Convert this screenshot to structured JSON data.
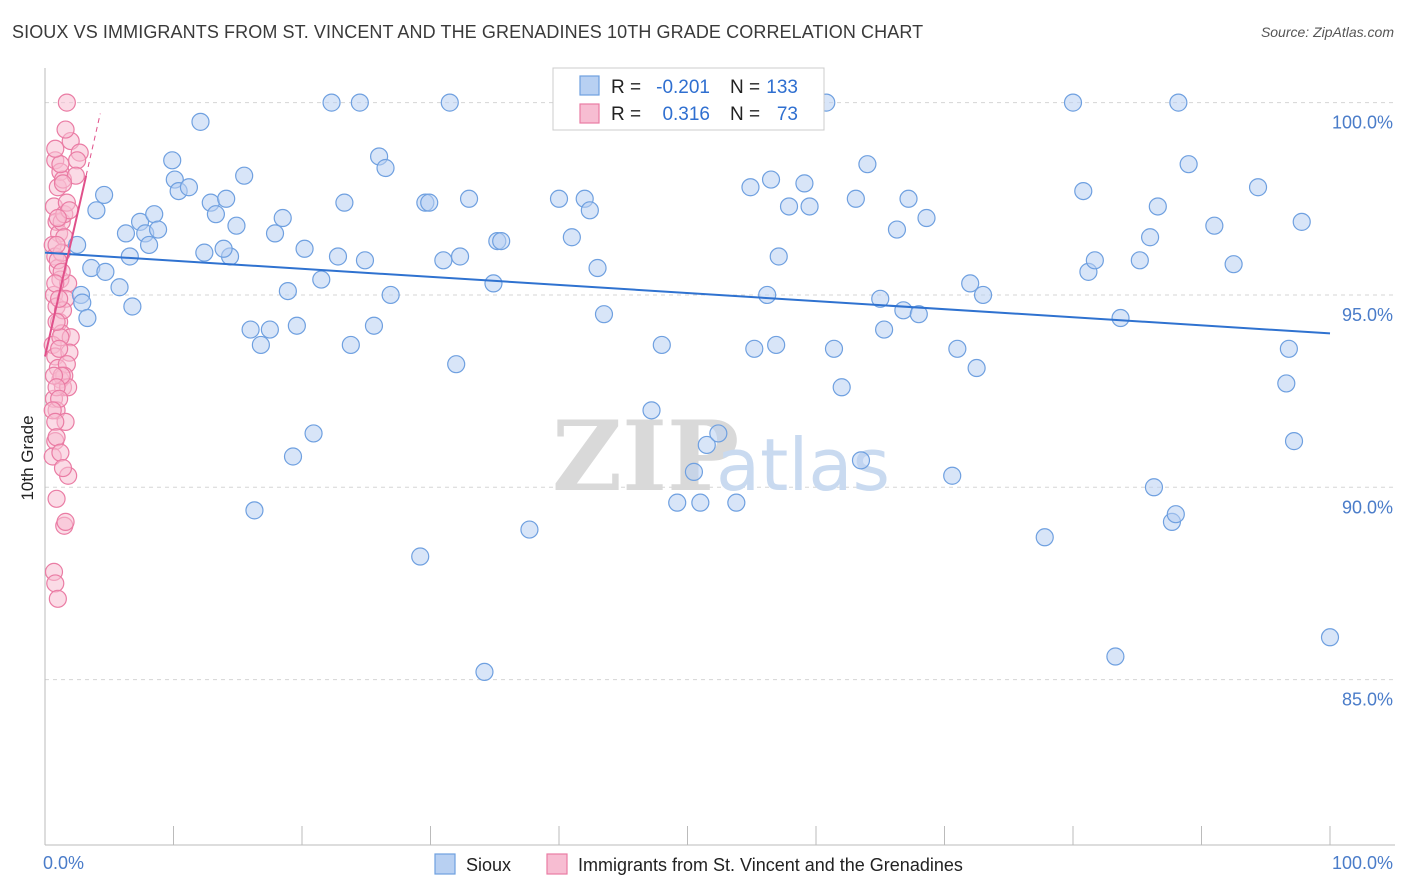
{
  "title": "SIOUX VS IMMIGRANTS FROM ST. VINCENT AND THE GRENADINES 10TH GRADE CORRELATION CHART",
  "source": "Source: ZipAtlas.com",
  "watermark": {
    "zip": "ZIP",
    "atlas": "atlas"
  },
  "colors": {
    "blue": "#6fa0e0",
    "blue_fill": "#b8d0f2",
    "pink": "#ea7ca4",
    "pink_fill": "#f7bdd2",
    "blue_line": "#2f72d0",
    "pink_line": "#e0508a",
    "grid": "#d5d5d5",
    "tick_text": "#4a7cc9"
  },
  "legend": {
    "r_label": "R =",
    "n_label": "N =",
    "rows": [
      {
        "r": "-0.201",
        "n": "133"
      },
      {
        "r": "0.316",
        "n": "73"
      }
    ]
  },
  "chart_data": {
    "type": "scatter",
    "title": "SIOUX VS IMMIGRANTS FROM ST. VINCENT AND THE GRENADINES 10TH GRADE CORRELATION CHART",
    "xlabel": "",
    "ylabel": "10th Grade",
    "xlim": [
      0,
      100
    ],
    "ylim": [
      80.7,
      100.9
    ],
    "x_tick_labels": [
      "0.0%",
      "100.0%"
    ],
    "y_ticks": [
      85,
      90,
      95,
      100
    ],
    "y_tick_labels": [
      "85.0%",
      "90.0%",
      "95.0%",
      "100.0%"
    ],
    "grid": true,
    "legend_position": "top-center",
    "series": [
      {
        "name": "Sioux",
        "color": "#6fa0e0",
        "trend": {
          "x0": 0,
          "y0": 96.1,
          "x1": 100,
          "y1": 94.0
        },
        "points": [
          [
            2.5,
            96.3
          ],
          [
            2.8,
            95.0
          ],
          [
            2.9,
            94.8
          ],
          [
            3.3,
            94.4
          ],
          [
            4.0,
            97.2
          ],
          [
            3.6,
            95.7
          ],
          [
            4.7,
            95.6
          ],
          [
            4.6,
            97.6
          ],
          [
            5.8,
            95.2
          ],
          [
            6.3,
            96.6
          ],
          [
            6.6,
            96.0
          ],
          [
            6.8,
            94.7
          ],
          [
            7.4,
            96.9
          ],
          [
            7.8,
            96.6
          ],
          [
            8.1,
            96.3
          ],
          [
            8.5,
            97.1
          ],
          [
            8.8,
            96.7
          ],
          [
            9.9,
            98.5
          ],
          [
            10.1,
            98.0
          ],
          [
            10.4,
            97.7
          ],
          [
            11.2,
            97.8
          ],
          [
            12.1,
            99.5
          ],
          [
            12.4,
            96.1
          ],
          [
            12.9,
            97.4
          ],
          [
            13.3,
            97.1
          ],
          [
            14.1,
            97.5
          ],
          [
            14.4,
            96.0
          ],
          [
            14.9,
            96.8
          ],
          [
            15.5,
            98.1
          ],
          [
            16.0,
            94.1
          ],
          [
            16.3,
            89.4
          ],
          [
            16.8,
            93.7
          ],
          [
            17.5,
            94.1
          ],
          [
            17.9,
            96.6
          ],
          [
            18.5,
            97.0
          ],
          [
            18.9,
            95.1
          ],
          [
            19.3,
            90.8
          ],
          [
            19.6,
            94.2
          ],
          [
            20.2,
            96.2
          ],
          [
            20.9,
            91.4
          ],
          [
            21.5,
            95.4
          ],
          [
            22.3,
            100.0
          ],
          [
            22.8,
            96.0
          ],
          [
            23.3,
            97.4
          ],
          [
            23.8,
            93.7
          ],
          [
            24.5,
            100.0
          ],
          [
            24.9,
            95.9
          ],
          [
            25.6,
            94.2
          ],
          [
            26.0,
            98.6
          ],
          [
            26.5,
            98.3
          ],
          [
            26.9,
            95.0
          ],
          [
            29.2,
            88.2
          ],
          [
            29.6,
            97.4
          ],
          [
            29.9,
            97.4
          ],
          [
            31.0,
            95.9
          ],
          [
            31.5,
            100.0
          ],
          [
            32.0,
            93.2
          ],
          [
            32.3,
            96.0
          ],
          [
            33.0,
            97.5
          ],
          [
            34.2,
            85.2
          ],
          [
            34.9,
            95.3
          ],
          [
            35.2,
            96.4
          ],
          [
            35.5,
            96.4
          ],
          [
            37.7,
            88.9
          ],
          [
            40.0,
            97.5
          ],
          [
            41.0,
            96.5
          ],
          [
            42.0,
            97.5
          ],
          [
            42.4,
            97.2
          ],
          [
            43.0,
            95.7
          ],
          [
            43.5,
            94.5
          ],
          [
            45.5,
            100.0
          ],
          [
            47.0,
            100.0
          ],
          [
            47.2,
            92.0
          ],
          [
            48.0,
            93.7
          ],
          [
            49.2,
            89.6
          ],
          [
            50.0,
            100.0
          ],
          [
            50.5,
            90.4
          ],
          [
            51.0,
            89.6
          ],
          [
            51.5,
            91.1
          ],
          [
            52.4,
            91.4
          ],
          [
            53.2,
            100.0
          ],
          [
            53.8,
            89.6
          ],
          [
            54.9,
            97.8
          ],
          [
            55.2,
            93.6
          ],
          [
            56.2,
            95.0
          ],
          [
            56.5,
            98.0
          ],
          [
            56.9,
            93.7
          ],
          [
            57.1,
            96.0
          ],
          [
            57.9,
            97.3
          ],
          [
            59.1,
            97.9
          ],
          [
            59.5,
            97.3
          ],
          [
            60.8,
            100.0
          ],
          [
            61.4,
            93.6
          ],
          [
            62.0,
            92.6
          ],
          [
            63.1,
            97.5
          ],
          [
            63.5,
            90.7
          ],
          [
            64.0,
            98.4
          ],
          [
            65.0,
            94.9
          ],
          [
            65.3,
            94.1
          ],
          [
            66.3,
            96.7
          ],
          [
            66.8,
            94.6
          ],
          [
            67.2,
            97.5
          ],
          [
            68.0,
            94.5
          ],
          [
            68.6,
            97.0
          ],
          [
            70.6,
            90.3
          ],
          [
            71.0,
            93.6
          ],
          [
            72.0,
            95.3
          ],
          [
            72.5,
            93.1
          ],
          [
            73.0,
            95.0
          ],
          [
            77.8,
            88.7
          ],
          [
            80.0,
            100.0
          ],
          [
            80.8,
            97.7
          ],
          [
            81.2,
            95.6
          ],
          [
            81.7,
            95.9
          ],
          [
            83.3,
            85.6
          ],
          [
            83.7,
            94.4
          ],
          [
            85.2,
            95.9
          ],
          [
            86.0,
            96.5
          ],
          [
            86.3,
            90.0
          ],
          [
            86.6,
            97.3
          ],
          [
            87.7,
            89.1
          ],
          [
            88.0,
            89.3
          ],
          [
            88.2,
            100.0
          ],
          [
            89.0,
            98.4
          ],
          [
            91.0,
            96.8
          ],
          [
            92.5,
            95.8
          ],
          [
            94.4,
            97.8
          ],
          [
            96.6,
            92.7
          ],
          [
            96.8,
            93.6
          ],
          [
            97.2,
            91.2
          ],
          [
            97.8,
            96.9
          ],
          [
            100.0,
            86.1
          ],
          [
            13.9,
            96.2
          ]
        ]
      },
      {
        "name": "Immigrants from St. Vincent and the Grenadines",
        "color": "#ea7ca4",
        "trend": {
          "x0": 0,
          "y0": 93.4,
          "x1": 3.2,
          "y1": 98.1
        },
        "points": [
          [
            0.8,
            98.5
          ],
          [
            1.0,
            97.8
          ],
          [
            1.2,
            98.2
          ],
          [
            1.4,
            98.0
          ],
          [
            0.7,
            97.3
          ],
          [
            0.9,
            96.9
          ],
          [
            1.1,
            96.6
          ],
          [
            1.3,
            96.9
          ],
          [
            1.5,
            97.1
          ],
          [
            0.6,
            96.3
          ],
          [
            0.8,
            96.0
          ],
          [
            1.0,
            95.7
          ],
          [
            1.2,
            95.4
          ],
          [
            0.7,
            95.0
          ],
          [
            0.9,
            94.7
          ],
          [
            1.1,
            94.3
          ],
          [
            1.3,
            94.0
          ],
          [
            0.6,
            93.7
          ],
          [
            0.8,
            93.4
          ],
          [
            1.0,
            93.1
          ],
          [
            1.2,
            92.8
          ],
          [
            1.4,
            92.6
          ],
          [
            0.7,
            92.3
          ],
          [
            0.9,
            92.0
          ],
          [
            1.6,
            91.7
          ],
          [
            0.8,
            91.2
          ],
          [
            0.6,
            90.8
          ],
          [
            1.8,
            90.3
          ],
          [
            0.9,
            89.7
          ],
          [
            1.5,
            89.0
          ],
          [
            0.7,
            87.8
          ],
          [
            0.8,
            87.5
          ],
          [
            1.0,
            87.1
          ],
          [
            1.7,
            100.0
          ],
          [
            2.0,
            99.0
          ],
          [
            1.6,
            99.3
          ],
          [
            2.7,
            98.7
          ],
          [
            2.5,
            98.5
          ],
          [
            2.4,
            98.1
          ],
          [
            1.7,
            97.4
          ],
          [
            1.9,
            97.2
          ],
          [
            1.5,
            96.5
          ],
          [
            1.3,
            96.1
          ],
          [
            1.8,
            95.3
          ],
          [
            1.6,
            94.9
          ],
          [
            1.4,
            94.6
          ],
          [
            2.0,
            93.9
          ],
          [
            1.9,
            93.5
          ],
          [
            1.7,
            93.2
          ],
          [
            1.5,
            92.9
          ],
          [
            1.8,
            92.6
          ],
          [
            1.2,
            93.9
          ],
          [
            0.9,
            94.3
          ],
          [
            1.1,
            93.6
          ],
          [
            1.3,
            92.9
          ],
          [
            0.7,
            92.9
          ],
          [
            0.9,
            92.6
          ],
          [
            1.1,
            92.3
          ],
          [
            0.6,
            92.0
          ],
          [
            0.8,
            91.7
          ],
          [
            0.9,
            91.3
          ],
          [
            1.2,
            90.9
          ],
          [
            1.4,
            90.5
          ],
          [
            1.6,
            89.1
          ],
          [
            1.0,
            95.9
          ],
          [
            1.3,
            95.6
          ],
          [
            0.8,
            95.3
          ],
          [
            1.1,
            94.9
          ],
          [
            0.9,
            96.3
          ],
          [
            1.4,
            97.9
          ],
          [
            1.2,
            98.4
          ],
          [
            0.8,
            98.8
          ],
          [
            1.0,
            97.0
          ]
        ]
      }
    ]
  }
}
